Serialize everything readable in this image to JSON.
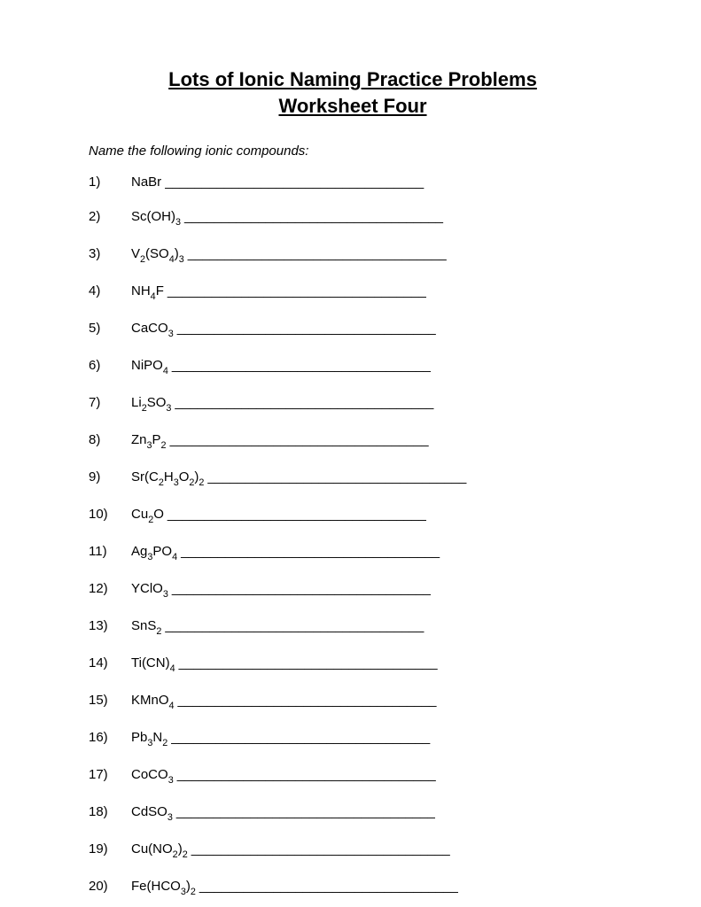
{
  "title_line1": "Lots of Ionic Naming Practice Problems",
  "title_line2": "Worksheet Four",
  "instruction": "Name the following ionic compounds:",
  "blank_line": "___________________________________",
  "problems": [
    {
      "n": "1)",
      "tokens": [
        "NaBr"
      ]
    },
    {
      "n": "2)",
      "tokens": [
        "Sc(OH)",
        {
          "sub": "3"
        }
      ]
    },
    {
      "n": "3)",
      "tokens": [
        "V",
        {
          "sub": "2"
        },
        "(SO",
        {
          "sub": "4"
        },
        ")",
        {
          "sub": "3"
        }
      ]
    },
    {
      "n": "4)",
      "tokens": [
        "NH",
        {
          "sub": "4"
        },
        "F"
      ]
    },
    {
      "n": "5)",
      "tokens": [
        "CaCO",
        {
          "sub": "3"
        }
      ]
    },
    {
      "n": "6)",
      "tokens": [
        "NiPO",
        {
          "sub": "4"
        }
      ]
    },
    {
      "n": "7)",
      "tokens": [
        "Li",
        {
          "sub": "2"
        },
        "SO",
        {
          "sub": "3"
        }
      ]
    },
    {
      "n": "8)",
      "tokens": [
        "Zn",
        {
          "sub": "3"
        },
        "P",
        {
          "sub": "2"
        }
      ]
    },
    {
      "n": "9)",
      "tokens": [
        "Sr(C",
        {
          "sub": "2"
        },
        "H",
        {
          "sub": "3"
        },
        "O",
        {
          "sub": "2"
        },
        ")",
        {
          "sub": "2"
        }
      ]
    },
    {
      "n": "10)",
      "tokens": [
        "Cu",
        {
          "sub": "2"
        },
        "O"
      ]
    },
    {
      "n": "11)",
      "tokens": [
        "Ag",
        {
          "sub": "3"
        },
        "PO",
        {
          "sub": "4"
        }
      ]
    },
    {
      "n": "12)",
      "tokens": [
        "YClO",
        {
          "sub": "3"
        }
      ]
    },
    {
      "n": "13)",
      "tokens": [
        "SnS",
        {
          "sub": "2"
        }
      ]
    },
    {
      "n": "14)",
      "tokens": [
        "Ti(CN)",
        {
          "sub": "4"
        }
      ]
    },
    {
      "n": "15)",
      "tokens": [
        "KMnO",
        {
          "sub": "4"
        }
      ]
    },
    {
      "n": "16)",
      "tokens": [
        "Pb",
        {
          "sub": "3"
        },
        "N",
        {
          "sub": "2"
        }
      ]
    },
    {
      "n": "17)",
      "tokens": [
        "CoCO",
        {
          "sub": "3"
        }
      ]
    },
    {
      "n": "18)",
      "tokens": [
        "CdSO",
        {
          "sub": "3"
        }
      ]
    },
    {
      "n": "19)",
      "tokens": [
        "Cu(NO",
        {
          "sub": "2"
        },
        ")",
        {
          "sub": "2"
        }
      ]
    },
    {
      "n": "20)",
      "tokens": [
        "Fe(HCO",
        {
          "sub": "3"
        },
        ")",
        {
          "sub": "2"
        }
      ]
    }
  ]
}
